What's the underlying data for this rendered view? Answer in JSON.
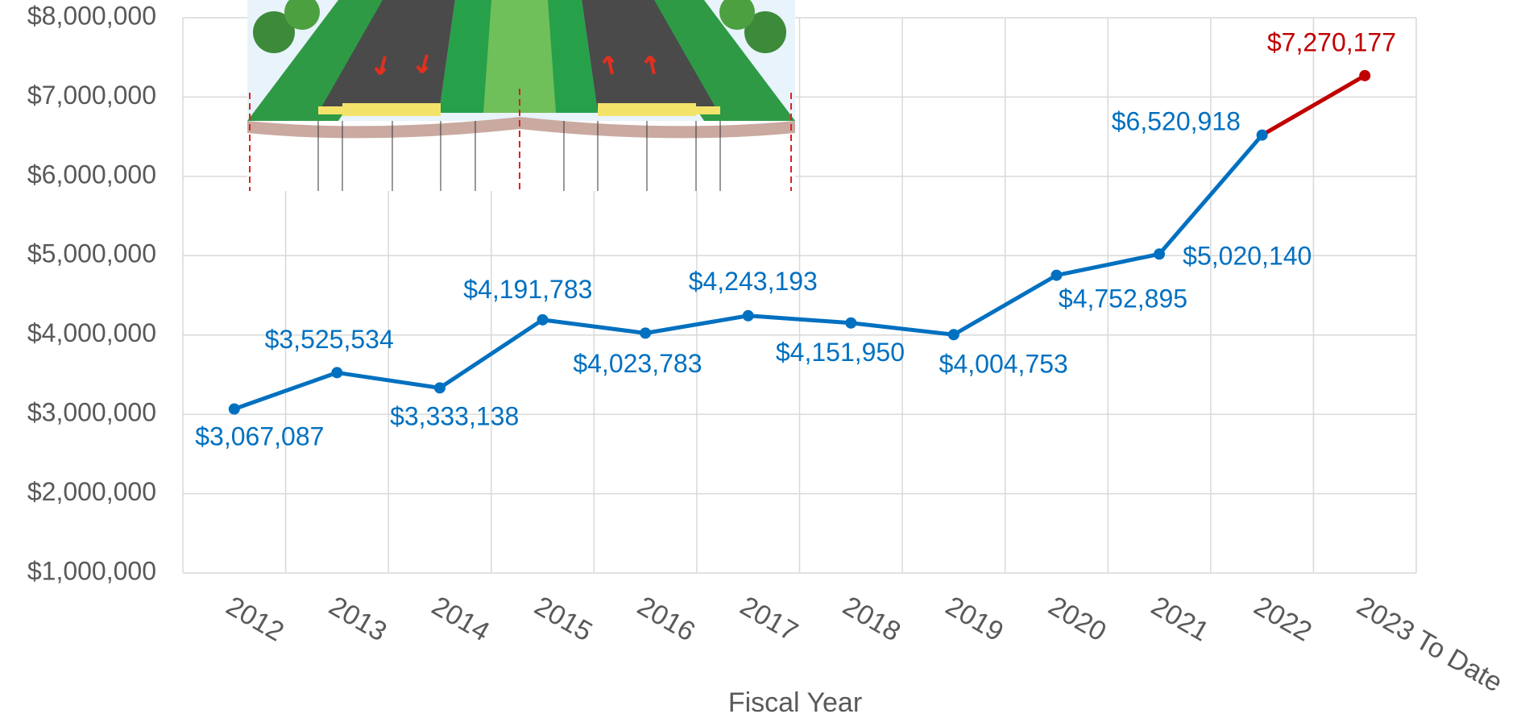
{
  "chart_data": {
    "type": "line",
    "x_label": "Fiscal Year",
    "categories": [
      "2012",
      "2013",
      "2014",
      "2015",
      "2016",
      "2017",
      "2018",
      "2019",
      "2020",
      "2021",
      "2022",
      "2023 To Date"
    ],
    "series": [
      {
        "color": "#0070c0",
        "last_segment_color": "#c00000",
        "values": [
          3067087,
          3525534,
          3333138,
          4191783,
          4023783,
          4243193,
          4151950,
          4004753,
          4752895,
          5020140,
          6520918,
          7270177
        ],
        "value_labels": [
          "$3,067,087",
          "$3,525,534",
          "$3,333,138",
          "$4,191,783",
          "$4,023,783",
          "$4,243,193",
          "$4,151,950",
          "$4,004,753",
          "$4,752,895",
          "$5,020,140",
          "$6,520,918",
          "$7,270,177"
        ]
      }
    ],
    "ylim": [
      1000000,
      8000000
    ],
    "yticks": [
      {
        "value": 1000000,
        "label": "$1,000,000"
      },
      {
        "value": 2000000,
        "label": "$2,000,000"
      },
      {
        "value": 3000000,
        "label": "$3,000,000"
      },
      {
        "value": 4000000,
        "label": "$4,000,000"
      },
      {
        "value": 5000000,
        "label": "$5,000,000"
      },
      {
        "value": 6000000,
        "label": "$6,000,000"
      },
      {
        "value": 7000000,
        "label": "$7,000,000"
      },
      {
        "value": 8000000,
        "label": "$8,000,000"
      }
    ],
    "grid": true
  }
}
